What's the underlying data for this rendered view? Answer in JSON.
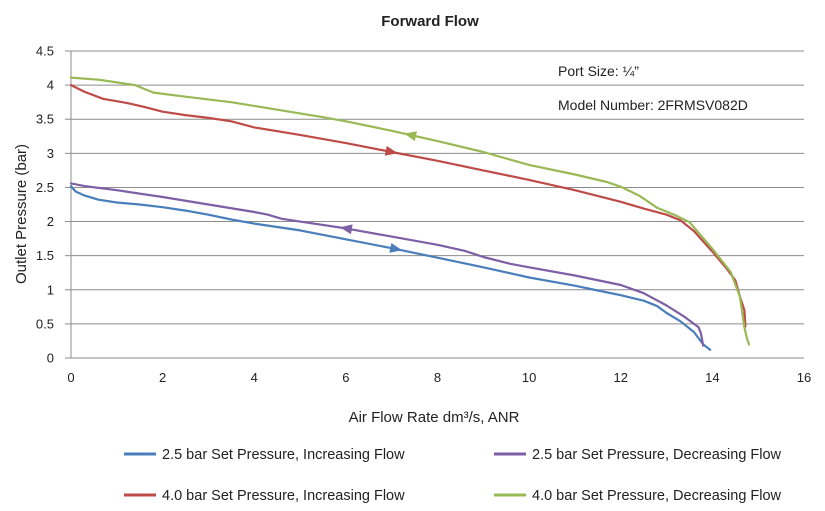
{
  "chart_data": {
    "type": "line",
    "title": "Forward Flow",
    "xlabel": "Air Flow Rate dm³/s, ANR",
    "ylabel": "Outlet Pressure (bar)",
    "xlim": [
      0,
      16
    ],
    "ylim": [
      0,
      4.5
    ],
    "x_ticks": [
      0,
      2,
      4,
      6,
      8,
      10,
      12,
      14,
      16
    ],
    "y_ticks": [
      0,
      0.5,
      1,
      1.5,
      2,
      2.5,
      3,
      3.5,
      4,
      4.5
    ],
    "x_tick_labels": [
      "0",
      "2",
      "4",
      "6",
      "8",
      "10",
      "12",
      "14",
      "16"
    ],
    "y_tick_labels": [
      "0",
      "0.5",
      "1",
      "1.5",
      "2",
      "2.5",
      "3",
      "3.5",
      "4",
      "4.5"
    ],
    "grid": "horizontal",
    "legend_position": "bottom",
    "annotations": [
      "Port Size: ¼”",
      "Model Number: 2FRMSV082D"
    ],
    "series": [
      {
        "name": "2.5 bar Set Pressure, Increasing Flow",
        "color": "#4a7ebb",
        "arrow": {
          "x": 7.1,
          "direction": "forward"
        },
        "x": [
          0,
          0.1,
          0.3,
          0.6,
          1.0,
          1.5,
          2.0,
          2.5,
          3.0,
          3.5,
          4.0,
          5.0,
          6.0,
          7.0,
          8.0,
          9.0,
          10.0,
          11.0,
          11.5,
          12.0,
          12.5,
          12.8,
          13.0,
          13.3,
          13.6,
          13.8,
          13.95
        ],
        "y": [
          2.52,
          2.44,
          2.38,
          2.32,
          2.28,
          2.25,
          2.21,
          2.16,
          2.1,
          2.03,
          1.97,
          1.87,
          1.74,
          1.61,
          1.47,
          1.33,
          1.18,
          1.06,
          0.99,
          0.92,
          0.84,
          0.76,
          0.66,
          0.54,
          0.38,
          0.2,
          0.12
        ]
      },
      {
        "name": "2.5 bar Set Pressure, Decreasing Flow",
        "color": "#7d5fa5",
        "arrow": {
          "x": 6.0,
          "direction": "backward"
        },
        "x": [
          0,
          0.3,
          1.0,
          2.0,
          3.0,
          4.0,
          4.3,
          4.6,
          5.0,
          6.0,
          7.0,
          8.0,
          8.6,
          9.0,
          9.6,
          10.0,
          11.0,
          12.0,
          12.5,
          13.0,
          13.4,
          13.6,
          13.7,
          13.75,
          13.8
        ],
        "y": [
          2.56,
          2.52,
          2.46,
          2.36,
          2.25,
          2.14,
          2.1,
          2.04,
          2.0,
          1.9,
          1.78,
          1.66,
          1.57,
          1.48,
          1.38,
          1.33,
          1.21,
          1.07,
          0.95,
          0.77,
          0.6,
          0.5,
          0.45,
          0.36,
          0.18
        ]
      },
      {
        "name": "4.0 bar Set Pressure, Increasing Flow",
        "color": "#be4b48",
        "arrow": {
          "x": 7.0,
          "direction": "forward"
        },
        "x": [
          0,
          0.3,
          0.7,
          1.2,
          1.6,
          2.0,
          2.5,
          3.0,
          3.5,
          4.0,
          5.0,
          6.0,
          7.0,
          8.0,
          9.0,
          10.0,
          11.0,
          12.0,
          12.5,
          13.0,
          13.3,
          13.6,
          14.0,
          14.3,
          14.5,
          14.6,
          14.7,
          14.72
        ],
        "y": [
          4.0,
          3.9,
          3.8,
          3.74,
          3.68,
          3.61,
          3.56,
          3.52,
          3.47,
          3.38,
          3.27,
          3.15,
          3.02,
          2.89,
          2.75,
          2.61,
          2.46,
          2.29,
          2.19,
          2.1,
          2.02,
          1.86,
          1.56,
          1.32,
          1.14,
          0.9,
          0.7,
          0.46
        ]
      },
      {
        "name": "4.0 bar Set Pressure, Decreasing Flow",
        "color": "#98b954",
        "arrow": {
          "x": 7.4,
          "direction": "backward"
        },
        "x": [
          0,
          0.6,
          1.0,
          1.4,
          1.8,
          2.5,
          3.5,
          4.5,
          5.5,
          6.0,
          7.0,
          8.0,
          9.0,
          10.0,
          11.0,
          11.7,
          12.0,
          12.4,
          12.8,
          13.2,
          13.5,
          14.0,
          14.4,
          14.6,
          14.7,
          14.75,
          14.8
        ],
        "y": [
          4.11,
          4.08,
          4.04,
          4.0,
          3.89,
          3.83,
          3.75,
          3.64,
          3.53,
          3.47,
          3.33,
          3.18,
          3.02,
          2.83,
          2.69,
          2.58,
          2.51,
          2.38,
          2.2,
          2.09,
          1.99,
          1.6,
          1.26,
          0.9,
          0.45,
          0.3,
          0.2
        ]
      }
    ]
  }
}
